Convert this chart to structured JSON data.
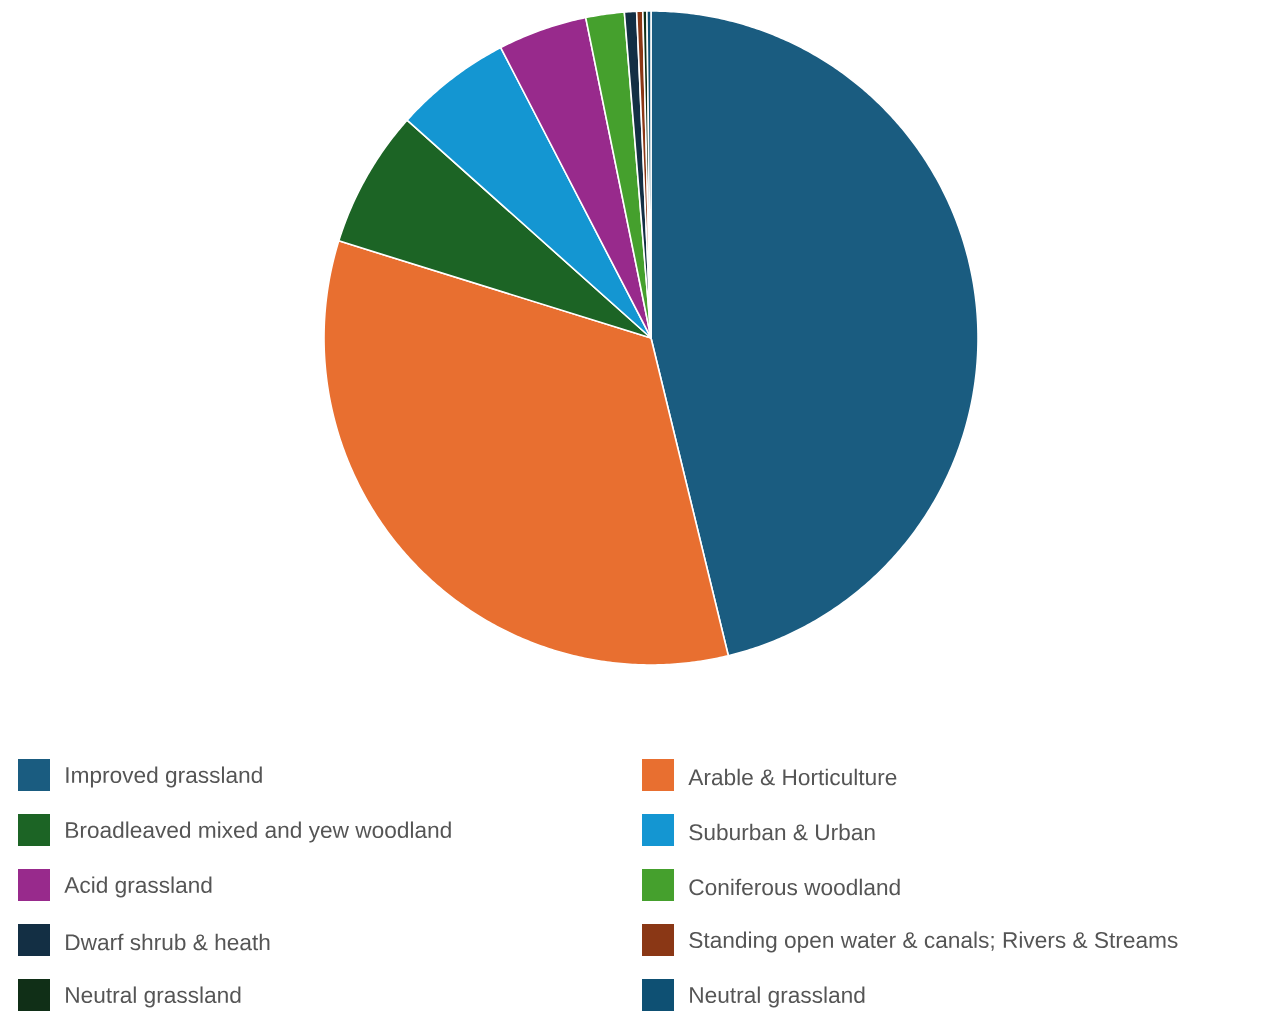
{
  "chart_data": {
    "type": "pie",
    "legend": "bottom",
    "categories": [
      "Improved grassland",
      "Arable & Horticulture",
      "Broadleaved mixed and yew woodland",
      "Suburban & Urban",
      "Acid grassland",
      "Coniferous woodland",
      "Dwarf shrub & heath",
      "Standing open water  & canals; Rivers & Streams",
      "Neutral grassland",
      "Neutral grassland"
    ],
    "values": [
      46.2,
      33.6,
      6.8,
      5.8,
      4.4,
      1.9,
      0.6,
      0.3,
      0.2,
      0.2
    ],
    "colors": [
      "#1a5c80",
      "#e86f30",
      "#1c6425",
      "#1496d2",
      "#982a8c",
      "#45a02d",
      "#132f44",
      "#8a3715",
      "#102f17",
      "#0e5073"
    ]
  }
}
